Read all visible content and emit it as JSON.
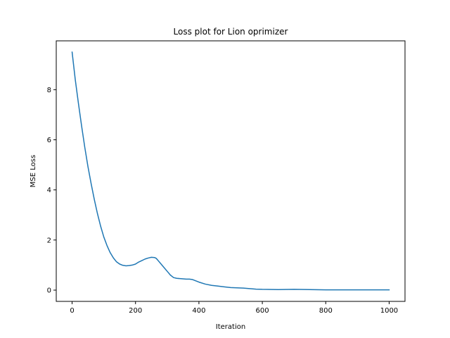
{
  "chart_data": {
    "type": "line",
    "title": "Loss plot for Lion oprimizer",
    "xlabel": "Iteration",
    "ylabel": "MSE Loss",
    "xlim": [
      -50,
      1050
    ],
    "ylim": [
      -0.45,
      9.95
    ],
    "x_ticks": [
      0,
      200,
      400,
      600,
      800,
      1000
    ],
    "y_ticks": [
      0,
      2,
      4,
      6,
      8
    ],
    "grid": false,
    "series": [
      {
        "color": "#1f77b4",
        "x": [
          0,
          10,
          20,
          30,
          40,
          50,
          60,
          70,
          80,
          90,
          100,
          110,
          120,
          130,
          140,
          150,
          160,
          170,
          180,
          190,
          200,
          210,
          220,
          230,
          240,
          250,
          260,
          265,
          270,
          280,
          290,
          300,
          310,
          320,
          330,
          340,
          350,
          360,
          370,
          380,
          390,
          400,
          420,
          440,
          460,
          480,
          500,
          520,
          540,
          560,
          580,
          600,
          650,
          700,
          750,
          800,
          850,
          900,
          950,
          1000
        ],
        "y": [
          9.5,
          8.4,
          7.45,
          6.55,
          5.7,
          4.93,
          4.25,
          3.62,
          3.05,
          2.55,
          2.12,
          1.78,
          1.5,
          1.29,
          1.13,
          1.04,
          0.99,
          0.97,
          0.98,
          1.0,
          1.04,
          1.12,
          1.18,
          1.24,
          1.28,
          1.31,
          1.3,
          1.27,
          1.2,
          1.05,
          0.9,
          0.75,
          0.6,
          0.5,
          0.47,
          0.46,
          0.45,
          0.44,
          0.44,
          0.42,
          0.37,
          0.32,
          0.24,
          0.19,
          0.16,
          0.13,
          0.1,
          0.09,
          0.08,
          0.06,
          0.04,
          0.03,
          0.02,
          0.03,
          0.02,
          0.01,
          0.01,
          0.01,
          0.01,
          0.01
        ]
      }
    ]
  }
}
